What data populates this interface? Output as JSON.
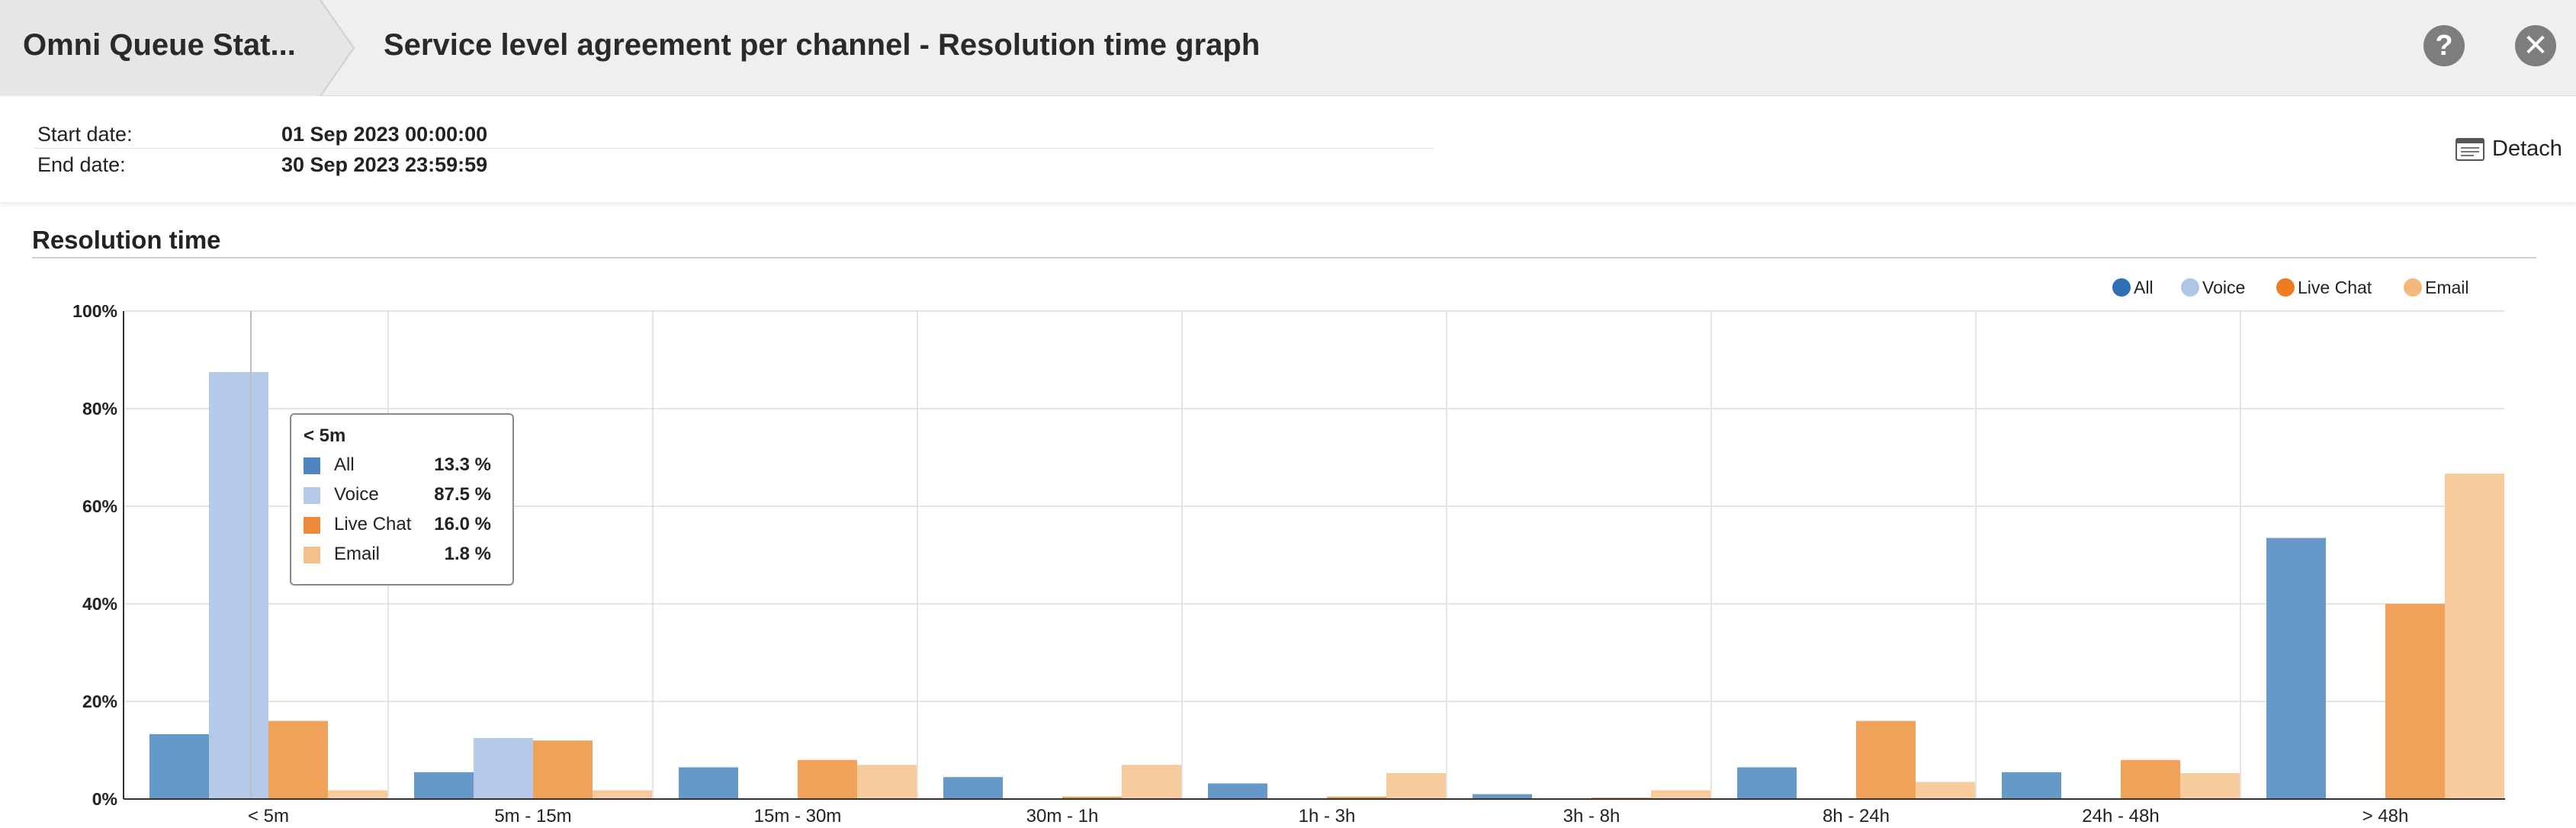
{
  "header": {
    "breadcrumb": "Omni Queue Stat...",
    "title": "Service level agreement per channel - Resolution time graph",
    "help_icon": "?",
    "close_icon": "✕"
  },
  "info": {
    "start_label": "Start date:",
    "start_value": "01 Sep 2023 00:00:00",
    "end_label": "End date:",
    "end_value": "30 Sep 2023 23:59:59",
    "detach_label": "Detach"
  },
  "section": {
    "title": "Resolution time"
  },
  "colors": {
    "All": "#6699c7",
    "Voice": "#b5c9e8",
    "Live Chat": "#f0a15a",
    "Email": "#f7cb9c"
  },
  "legend_colors": {
    "All": "#2f6fb3",
    "Voice": "#aec7e8",
    "Live Chat": "#ee7d22",
    "Email": "#f5b87a"
  },
  "chart_data": {
    "type": "bar",
    "categories": [
      "< 5m",
      "5m - 15m",
      "15m - 30m",
      "30m - 1h",
      "1h - 3h",
      "3h - 8h",
      "8h - 24h",
      "24h - 48h",
      "> 48h"
    ],
    "series": [
      {
        "name": "All",
        "values": [
          13.3,
          5.5,
          6.5,
          4.5,
          3.2,
          1.0,
          6.5,
          5.5,
          53.5
        ]
      },
      {
        "name": "Voice",
        "values": [
          87.5,
          12.5,
          0,
          0,
          0,
          0,
          0,
          0,
          0
        ]
      },
      {
        "name": "Live Chat",
        "values": [
          16.0,
          12.0,
          8.0,
          0.5,
          0.5,
          0.3,
          16.0,
          8.0,
          40.0
        ]
      },
      {
        "name": "Email",
        "values": [
          1.8,
          1.8,
          7.0,
          7.0,
          5.3,
          1.8,
          3.5,
          5.3,
          66.7
        ]
      }
    ],
    "yticks": [
      "0%",
      "20%",
      "40%",
      "60%",
      "80%",
      "100%"
    ],
    "ylim": [
      0,
      100
    ],
    "grid": true,
    "legend": "top-right"
  },
  "tooltip": {
    "title": "< 5m",
    "rows": [
      {
        "name": "All",
        "value": "13.3 %"
      },
      {
        "name": "Voice",
        "value": "87.5 %"
      },
      {
        "name": "Live Chat",
        "value": "16.0 %"
      },
      {
        "name": "Email",
        "value": "1.8 %"
      }
    ]
  }
}
